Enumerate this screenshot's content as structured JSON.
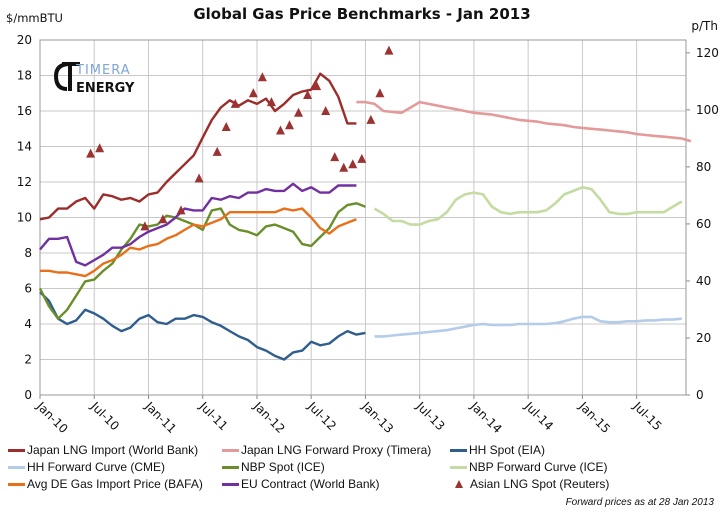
{
  "chart_data": {
    "type": "line",
    "title": "Global Gas Price Benchmarks - Jan 2013",
    "ylabel": "$/mmBTU",
    "y2label": "p/Th",
    "ylim": [
      0,
      20
    ],
    "y2lim": [
      0,
      124.5
    ],
    "yticks": [
      0,
      2,
      4,
      6,
      8,
      10,
      12,
      14,
      16,
      18,
      20
    ],
    "y2ticks": [
      0,
      20,
      40,
      60,
      80,
      100,
      120
    ],
    "xlim": [
      "2010-01",
      "2015-12"
    ],
    "xticks": [
      "Jan-10",
      "Jul-10",
      "Jan-11",
      "Jul-11",
      "Jan-12",
      "Jul-12",
      "Jan-13",
      "Jul-13",
      "Jan-14",
      "Jul-14",
      "Jan-15",
      "Jul-15"
    ],
    "grid": true,
    "legend_position": "bottom",
    "footnote": "Forward prices as at 28  Jan 2013",
    "series": [
      {
        "name": "Japan LNG Import (World Bank)",
        "color": "#9b2d2a",
        "start": "2010-01",
        "values": [
          9.9,
          10.0,
          10.5,
          10.5,
          10.9,
          11.1,
          10.5,
          11.3,
          11.2,
          11.0,
          11.1,
          10.9,
          11.3,
          11.4,
          12.0,
          12.5,
          13.0,
          13.5,
          14.5,
          15.5,
          16.2,
          16.6,
          16.3,
          16.6,
          16.4,
          16.7,
          16.0,
          16.4,
          16.9,
          17.1,
          17.2,
          18.1,
          17.7,
          16.8,
          15.3,
          15.3
        ]
      },
      {
        "name": "Japan LNG Forward Proxy (Timera)",
        "color": "#e39a9a",
        "start": "2012-12",
        "values": [
          16.5,
          16.5,
          16.4,
          16.0,
          15.95,
          15.9,
          16.2,
          16.5,
          16.4,
          16.3,
          16.2,
          16.1,
          16.0,
          15.9,
          15.85,
          15.8,
          15.7,
          15.6,
          15.5,
          15.45,
          15.4,
          15.3,
          15.25,
          15.2,
          15.1,
          15.05,
          15.0,
          14.95,
          14.9,
          14.85,
          14.8,
          14.7,
          14.65,
          14.6,
          14.55,
          14.5,
          14.45,
          14.3
        ]
      },
      {
        "name": "HH Spot (EIA)",
        "color": "#2e5d8e",
        "start": "2010-01",
        "values": [
          5.8,
          5.3,
          4.3,
          4.0,
          4.2,
          4.8,
          4.6,
          4.3,
          3.9,
          3.6,
          3.8,
          4.3,
          4.5,
          4.1,
          4.0,
          4.3,
          4.3,
          4.5,
          4.4,
          4.1,
          3.9,
          3.6,
          3.3,
          3.1,
          2.7,
          2.5,
          2.2,
          2.0,
          2.4,
          2.5,
          3.0,
          2.8,
          2.9,
          3.3,
          3.6,
          3.4,
          3.5
        ]
      },
      {
        "name": "HH Forward Curve (CME)",
        "color": "#b4cbea",
        "start": "2013-02",
        "values": [
          3.3,
          3.3,
          3.35,
          3.4,
          3.45,
          3.5,
          3.55,
          3.6,
          3.65,
          3.75,
          3.85,
          3.95,
          4.0,
          3.95,
          3.95,
          3.95,
          4.0,
          4.0,
          4.0,
          4.0,
          4.05,
          4.15,
          4.3,
          4.4,
          4.4,
          4.15,
          4.1,
          4.1,
          4.15,
          4.15,
          4.2,
          4.2,
          4.25,
          4.25,
          4.3
        ]
      },
      {
        "name": "NBP Spot (ICE)",
        "color": "#6a8e2a",
        "start": "2010-01",
        "values": [
          6.0,
          5.0,
          4.3,
          4.8,
          5.6,
          6.4,
          6.5,
          7.0,
          7.4,
          8.2,
          8.8,
          9.6,
          9.5,
          9.6,
          10.1,
          10.0,
          9.8,
          9.6,
          9.3,
          10.4,
          10.5,
          9.6,
          9.3,
          9.2,
          9.0,
          9.5,
          9.6,
          9.4,
          9.2,
          8.5,
          8.4,
          8.9,
          9.4,
          10.3,
          10.7,
          10.8,
          10.6
        ]
      },
      {
        "name": "NBP Forward Curve (ICE)",
        "color": "#c4dba2",
        "start": "2013-02",
        "values": [
          10.5,
          10.2,
          9.8,
          9.8,
          9.6,
          9.6,
          9.8,
          9.9,
          10.3,
          11.0,
          11.3,
          11.4,
          11.3,
          10.6,
          10.3,
          10.2,
          10.3,
          10.3,
          10.3,
          10.4,
          10.8,
          11.3,
          11.5,
          11.7,
          11.6,
          11.0,
          10.3,
          10.2,
          10.2,
          10.3,
          10.3,
          10.3,
          10.3,
          10.6,
          10.9
        ]
      },
      {
        "name": "Avg DE Gas Import Price (BAFA)",
        "color": "#e8701a",
        "start": "2010-01",
        "values": [
          7.0,
          7.0,
          6.9,
          6.9,
          6.8,
          6.7,
          7.0,
          7.4,
          7.6,
          7.9,
          8.3,
          8.2,
          8.4,
          8.5,
          8.8,
          9.0,
          9.3,
          9.6,
          9.5,
          9.7,
          9.9,
          10.3,
          10.3,
          10.3,
          10.3,
          10.3,
          10.3,
          10.5,
          10.4,
          10.5,
          10.0,
          9.4,
          9.1,
          9.5,
          9.7,
          9.9
        ]
      },
      {
        "name": "EU Contract (World Bank)",
        "color": "#7030a0",
        "start": "2010-01",
        "values": [
          8.2,
          8.8,
          8.8,
          8.9,
          7.5,
          7.3,
          7.6,
          7.9,
          8.3,
          8.3,
          8.5,
          8.9,
          9.2,
          9.4,
          9.6,
          10.0,
          10.5,
          10.4,
          10.4,
          11.1,
          11.0,
          11.2,
          11.1,
          11.4,
          11.4,
          11.6,
          11.5,
          11.5,
          11.9,
          11.5,
          11.7,
          11.4,
          11.4,
          11.8,
          11.8,
          11.8
        ]
      }
    ],
    "markers": {
      "name": "Asian LNG Spot (Reuters)",
      "color": "#9b3333",
      "points": [
        [
          "2010-06",
          13.6
        ],
        [
          "2010-07",
          13.9
        ],
        [
          "2010-12",
          9.5
        ],
        [
          "2011-02",
          9.9
        ],
        [
          "2011-04",
          10.4
        ],
        [
          "2011-06",
          12.2
        ],
        [
          "2011-08",
          13.7
        ],
        [
          "2011-09",
          15.1
        ],
        [
          "2011-10",
          16.4
        ],
        [
          "2011-12",
          17.0
        ],
        [
          "2012-01",
          17.9
        ],
        [
          "2012-02",
          16.5
        ],
        [
          "2012-03",
          14.9
        ],
        [
          "2012-04",
          15.2
        ],
        [
          "2012-05",
          15.9
        ],
        [
          "2012-06",
          16.9
        ],
        [
          "2012-07",
          17.4
        ],
        [
          "2012-08",
          16.0
        ],
        [
          "2012-09",
          13.4
        ],
        [
          "2012-10",
          12.8
        ],
        [
          "2012-11",
          13.0
        ],
        [
          "2012-12",
          13.3
        ],
        [
          "2013-01",
          15.5
        ],
        [
          "2013-02",
          17.0
        ],
        [
          "2013-03",
          19.4
        ]
      ]
    }
  },
  "logo": {
    "line1": "TIMERA",
    "line2": "ENERGY"
  }
}
